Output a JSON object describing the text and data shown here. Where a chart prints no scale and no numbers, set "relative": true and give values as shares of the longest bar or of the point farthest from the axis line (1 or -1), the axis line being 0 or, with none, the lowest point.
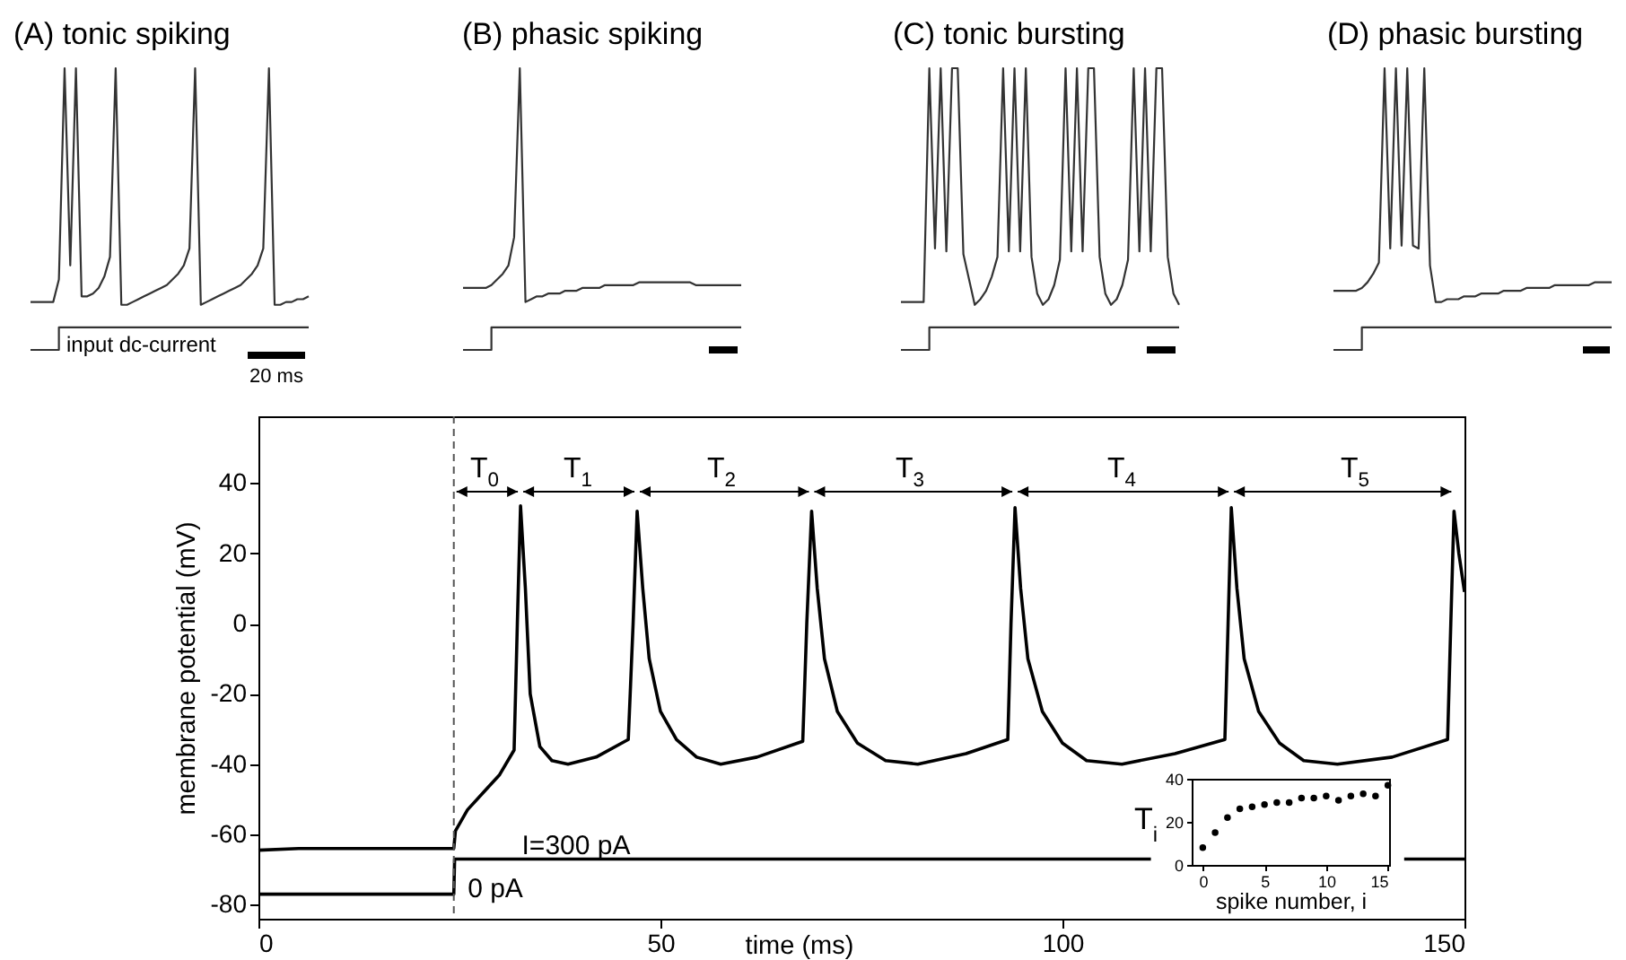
{
  "chart_data": [
    {
      "type": "line",
      "title": "(A) tonic spiking",
      "relative": true,
      "annotations": [
        "input dc-current",
        "20 ms"
      ],
      "categories": [
        null,
        null,
        null,
        null,
        null,
        null,
        null,
        null,
        null,
        null,
        null,
        null,
        null,
        null,
        null,
        null,
        null,
        null,
        null,
        null,
        null,
        null,
        null,
        null,
        null,
        null,
        null,
        null,
        null,
        null,
        null,
        null,
        null,
        null,
        null,
        null,
        null,
        null,
        null,
        null,
        null,
        null,
        null,
        null,
        null,
        null,
        null,
        null,
        null,
        null
      ],
      "series": [
        {
          "color": "#333333",
          "values": [
            0.17,
            0.17,
            0.17,
            0.17,
            0.17,
            0.25,
            1,
            0.3,
            1,
            0.19,
            0.19,
            0.2,
            0.22,
            0.26,
            0.33,
            1,
            0.16,
            0.16,
            0.17,
            0.18,
            0.19,
            0.2,
            0.21,
            0.22,
            0.23,
            0.25,
            0.27,
            0.3,
            0.36,
            1,
            0.16,
            0.17,
            0.18,
            0.19,
            0.2,
            0.21,
            0.22,
            0.23,
            0.25,
            0.27,
            0.3,
            0.36,
            1,
            0.16,
            0.16,
            0.17,
            0.17,
            0.18,
            0.18,
            0.19
          ]
        },
        {
          "type": "step",
          "color": "#333333",
          "values": [
            0,
            0,
            0,
            0,
            0,
            0.08,
            0.08,
            0.08,
            0.08,
            0.08,
            0.08,
            0.08,
            0.08,
            0.08,
            0.08,
            0.08,
            0.08,
            0.08,
            0.08,
            0.08,
            0.08,
            0.08,
            0.08,
            0.08,
            0.08,
            0.08,
            0.08,
            0.08,
            0.08,
            0.08,
            0.08,
            0.08,
            0.08,
            0.08,
            0.08,
            0.08,
            0.08,
            0.08,
            0.08,
            0.08,
            0.08,
            0.08,
            0.08,
            0.08,
            0.08,
            0.08,
            0.08,
            0.08,
            0.08,
            0.08
          ]
        }
      ]
    },
    {
      "type": "line",
      "title": "(B) phasic spiking",
      "relative": true,
      "categories": [
        null,
        null,
        null,
        null,
        null,
        null,
        null,
        null,
        null,
        null,
        null,
        null,
        null,
        null,
        null,
        null,
        null,
        null,
        null,
        null,
        null,
        null,
        null,
        null,
        null,
        null,
        null,
        null,
        null,
        null,
        null,
        null,
        null,
        null,
        null,
        null,
        null,
        null,
        null,
        null,
        null,
        null,
        null,
        null,
        null,
        null,
        null,
        null,
        null,
        null
      ],
      "series": [
        {
          "color": "#333333",
          "values": [
            0.22,
            0.22,
            0.22,
            0.22,
            0.22,
            0.23,
            0.25,
            0.27,
            0.3,
            0.4,
            1,
            0.17,
            0.18,
            0.19,
            0.19,
            0.2,
            0.2,
            0.2,
            0.21,
            0.21,
            0.21,
            0.22,
            0.22,
            0.22,
            0.22,
            0.23,
            0.23,
            0.23,
            0.23,
            0.23,
            0.23,
            0.24,
            0.24,
            0.24,
            0.24,
            0.24,
            0.24,
            0.24,
            0.24,
            0.24,
            0.24,
            0.23,
            0.23,
            0.23,
            0.23,
            0.23,
            0.23,
            0.23,
            0.23,
            0.23
          ]
        },
        {
          "type": "step",
          "color": "#333333",
          "values": [
            0,
            0,
            0,
            0,
            0,
            0.08,
            0.08,
            0.08,
            0.08,
            0.08,
            0.08,
            0.08,
            0.08,
            0.08,
            0.08,
            0.08,
            0.08,
            0.08,
            0.08,
            0.08,
            0.08,
            0.08,
            0.08,
            0.08,
            0.08,
            0.08,
            0.08,
            0.08,
            0.08,
            0.08,
            0.08,
            0.08,
            0.08,
            0.08,
            0.08,
            0.08,
            0.08,
            0.08,
            0.08,
            0.08,
            0.08,
            0.08,
            0.08,
            0.08,
            0.08,
            0.08,
            0.08,
            0.08,
            0.08,
            0.08
          ]
        }
      ]
    },
    {
      "type": "line",
      "title": "(C) tonic bursting",
      "relative": true,
      "categories": [
        null,
        null,
        null,
        null,
        null,
        null,
        null,
        null,
        null,
        null,
        null,
        null,
        null,
        null,
        null,
        null,
        null,
        null,
        null,
        null,
        null,
        null,
        null,
        null,
        null,
        null,
        null,
        null,
        null,
        null,
        null,
        null,
        null,
        null,
        null,
        null,
        null,
        null,
        null,
        null,
        null,
        null,
        null,
        null,
        null,
        null,
        null,
        null,
        null,
        null
      ],
      "series": [
        {
          "color": "#333333",
          "values": [
            0.17,
            0.17,
            0.17,
            0.17,
            0.17,
            1,
            0.36,
            1,
            0.35,
            1,
            1,
            0.34,
            0.25,
            0.16,
            0.18,
            0.21,
            0.26,
            0.33,
            1,
            0.35,
            1,
            0.35,
            1,
            0.33,
            0.2,
            0.16,
            0.18,
            0.23,
            0.32,
            1,
            0.35,
            1,
            0.35,
            1,
            1,
            0.33,
            0.2,
            0.16,
            0.18,
            0.23,
            0.32,
            1,
            0.35,
            1,
            0.35,
            1,
            1,
            0.33,
            0.2,
            0.16
          ]
        },
        {
          "type": "step",
          "color": "#333333",
          "values": [
            0,
            0,
            0,
            0,
            0,
            0.08,
            0.08,
            0.08,
            0.08,
            0.08,
            0.08,
            0.08,
            0.08,
            0.08,
            0.08,
            0.08,
            0.08,
            0.08,
            0.08,
            0.08,
            0.08,
            0.08,
            0.08,
            0.08,
            0.08,
            0.08,
            0.08,
            0.08,
            0.08,
            0.08,
            0.08,
            0.08,
            0.08,
            0.08,
            0.08,
            0.08,
            0.08,
            0.08,
            0.08,
            0.08,
            0.08,
            0.08,
            0.08,
            0.08,
            0.08,
            0.08,
            0.08,
            0.08,
            0.08,
            0.08
          ]
        }
      ]
    },
    {
      "type": "line",
      "title": "(D) phasic bursting",
      "relative": true,
      "categories": [
        null,
        null,
        null,
        null,
        null,
        null,
        null,
        null,
        null,
        null,
        null,
        null,
        null,
        null,
        null,
        null,
        null,
        null,
        null,
        null,
        null,
        null,
        null,
        null,
        null,
        null,
        null,
        null,
        null,
        null,
        null,
        null,
        null,
        null,
        null,
        null,
        null,
        null,
        null,
        null,
        null,
        null,
        null,
        null,
        null,
        null,
        null,
        null,
        null,
        null
      ],
      "series": [
        {
          "color": "#333333",
          "values": [
            0.21,
            0.21,
            0.21,
            0.21,
            0.21,
            0.22,
            0.24,
            0.27,
            0.31,
            1,
            0.36,
            1,
            0.37,
            1,
            0.37,
            0.36,
            1,
            0.3,
            0.17,
            0.17,
            0.18,
            0.18,
            0.18,
            0.19,
            0.19,
            0.19,
            0.2,
            0.2,
            0.2,
            0.2,
            0.21,
            0.21,
            0.21,
            0.21,
            0.22,
            0.22,
            0.22,
            0.22,
            0.22,
            0.23,
            0.23,
            0.23,
            0.23,
            0.23,
            0.23,
            0.23,
            0.24,
            0.24,
            0.24,
            0.24
          ]
        },
        {
          "type": "step",
          "color": "#333333",
          "values": [
            0,
            0,
            0,
            0,
            0,
            0.08,
            0.08,
            0.08,
            0.08,
            0.08,
            0.08,
            0.08,
            0.08,
            0.08,
            0.08,
            0.08,
            0.08,
            0.08,
            0.08,
            0.08,
            0.08,
            0.08,
            0.08,
            0.08,
            0.08,
            0.08,
            0.08,
            0.08,
            0.08,
            0.08,
            0.08,
            0.08,
            0.08,
            0.08,
            0.08,
            0.08,
            0.08,
            0.08,
            0.08,
            0.08,
            0.08,
            0.08,
            0.08,
            0.08,
            0.08,
            0.08,
            0.08,
            0.08,
            0.08,
            0.08
          ]
        }
      ]
    },
    {
      "type": "line",
      "xlabel": "time (ms)",
      "ylabel": "membrane potential (mV)",
      "xlim": [
        0,
        150
      ],
      "ylim": [
        -84,
        59
      ],
      "xticks": [
        0,
        50,
        100,
        150
      ],
      "yticks": [
        -80,
        -60,
        -40,
        -20,
        0,
        20,
        40
      ],
      "series": [
        {
          "color": "#000000",
          "x": [
            0,
            5,
            24.3,
            24.5,
            26,
            28,
            30,
            31.8,
            32.2,
            32.6,
            33.2,
            33.8,
            35,
            36.5,
            38.5,
            42,
            46,
            46.6,
            47.1,
            47.8,
            48.6,
            50,
            52,
            54.5,
            57.5,
            62,
            67.7,
            68.2,
            68.8,
            69.5,
            70.4,
            72,
            74.5,
            78,
            82,
            88,
            93.2,
            93.6,
            94.1,
            94.8,
            95.7,
            97.5,
            100,
            103,
            107.4,
            114,
            120.2,
            120.6,
            121,
            121.7,
            122.6,
            124.4,
            127,
            130,
            134.2,
            141,
            147.9,
            148.3,
            148.7,
            149.3,
            150
          ],
          "values": [
            -64.5,
            -64,
            -64,
            -59,
            -53,
            -48,
            -43,
            -36,
            0,
            33.5,
            10,
            -20,
            -35,
            -39,
            -40,
            -38,
            -33,
            0,
            32,
            10,
            -10,
            -25,
            -33,
            -38,
            -40,
            -38,
            -33.5,
            0,
            32,
            10,
            -10,
            -25,
            -34,
            -39,
            -40,
            -37,
            -33,
            0,
            33,
            10,
            -10,
            -25,
            -34,
            -39,
            -40,
            -37,
            -33,
            0,
            33,
            10,
            -10,
            -25,
            -34,
            -39,
            -40,
            -38,
            -33,
            0,
            32,
            20,
            9
          ]
        },
        {
          "color": "#000000",
          "x": [
            0,
            24.3,
            24.4,
            111,
            126,
            142.5,
            150
          ],
          "values": [
            -77,
            -77,
            -67,
            -67,
            null,
            -67,
            -67
          ]
        }
      ],
      "ref_lines": [
        {
          "axis": "x",
          "value": 24.3,
          "line_style": "dashed",
          "color": "#555555"
        }
      ],
      "annotations": [
        "T$_{0}$",
        "T$_{1}$",
        "T$_{2}$",
        "T$_{3}$",
        "T$_{4}$",
        "T$_{5}$",
        "I=300 pA",
        "0 pA"
      ]
    },
    {
      "type": "scatter",
      "xlabel": "spike number, i",
      "ylabel": "T$_{i}$",
      "xlim": [
        -0.9,
        15.1
      ],
      "ylim": [
        0,
        40
      ],
      "xticks": [
        0,
        5,
        10,
        15
      ],
      "yticks": [
        0,
        20,
        40
      ],
      "marker": "circle",
      "color": "#000000",
      "x": [
        0,
        1,
        2,
        3,
        4,
        5,
        6,
        7,
        8,
        9,
        10,
        11,
        12,
        13,
        14,
        15
      ],
      "values": [
        8,
        15,
        22,
        26,
        27,
        28,
        29,
        29,
        31,
        31,
        32,
        30,
        32,
        33,
        32,
        37
      ]
    }
  ]
}
